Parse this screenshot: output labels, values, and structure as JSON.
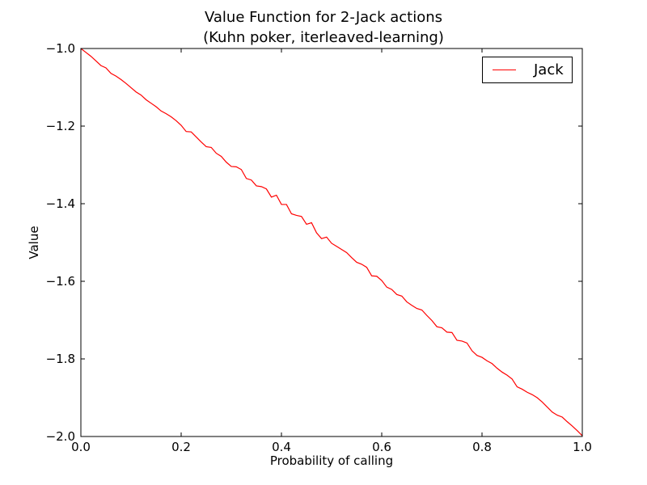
{
  "chart_data": {
    "type": "line",
    "title": "Value Function for 2-Jack actions",
    "subtitle": "(Kuhn poker, iterleaved-learning)",
    "xlabel": "Probability of calling",
    "ylabel": "Value",
    "xlim": [
      0.0,
      1.0
    ],
    "ylim": [
      -2.0,
      -1.0
    ],
    "xticks": [
      0.0,
      0.2,
      0.4,
      0.6,
      0.8,
      1.0
    ],
    "xtick_labels": [
      "0.0",
      "0.2",
      "0.4",
      "0.6",
      "0.8",
      "1.0"
    ],
    "yticks": [
      -1.0,
      -1.2,
      -1.4,
      -1.6,
      -1.8,
      -2.0
    ],
    "ytick_labels": [
      "−1.0",
      "−1.2",
      "−1.4",
      "−1.6",
      "−1.8",
      "−2.0"
    ],
    "grid": false,
    "legend_position": "top-right",
    "colors": {
      "series": "#ff0000"
    },
    "series": [
      {
        "name": "Jack",
        "x": [
          0.0,
          0.01,
          0.02,
          0.03,
          0.04,
          0.05,
          0.06,
          0.07,
          0.08,
          0.09,
          0.1,
          0.11,
          0.12,
          0.13,
          0.14,
          0.15,
          0.16,
          0.17,
          0.18,
          0.19,
          0.2,
          0.21,
          0.22,
          0.23,
          0.24,
          0.25,
          0.26,
          0.27,
          0.28,
          0.29,
          0.3,
          0.31,
          0.32,
          0.33,
          0.34,
          0.35,
          0.36,
          0.37,
          0.38,
          0.39,
          0.4,
          0.41,
          0.42,
          0.43,
          0.44,
          0.45,
          0.46,
          0.47,
          0.48,
          0.49,
          0.5,
          0.51,
          0.52,
          0.53,
          0.54,
          0.55,
          0.56,
          0.57,
          0.58,
          0.59,
          0.6,
          0.61,
          0.62,
          0.63,
          0.64,
          0.65,
          0.66,
          0.67,
          0.68,
          0.69,
          0.7,
          0.71,
          0.72,
          0.73,
          0.74,
          0.75,
          0.76,
          0.77,
          0.78,
          0.79,
          0.8,
          0.81,
          0.82,
          0.83,
          0.84,
          0.85,
          0.86,
          0.87,
          0.88,
          0.89,
          0.9,
          0.91,
          0.92,
          0.93,
          0.94,
          0.95,
          0.96,
          0.97,
          0.98,
          0.99,
          1.0
        ],
        "y": [
          -1.0,
          -1.01,
          -1.02,
          -1.032,
          -1.044,
          -1.05,
          -1.064,
          -1.071,
          -1.08,
          -1.09,
          -1.101,
          -1.112,
          -1.12,
          -1.132,
          -1.141,
          -1.15,
          -1.161,
          -1.168,
          -1.176,
          -1.186,
          -1.198,
          -1.214,
          -1.215,
          -1.228,
          -1.241,
          -1.253,
          -1.255,
          -1.27,
          -1.278,
          -1.293,
          -1.304,
          -1.305,
          -1.312,
          -1.335,
          -1.339,
          -1.354,
          -1.356,
          -1.362,
          -1.383,
          -1.378,
          -1.402,
          -1.402,
          -1.426,
          -1.43,
          -1.433,
          -1.453,
          -1.449,
          -1.475,
          -1.49,
          -1.486,
          -1.502,
          -1.51,
          -1.518,
          -1.526,
          -1.539,
          -1.551,
          -1.556,
          -1.564,
          -1.586,
          -1.587,
          -1.598,
          -1.615,
          -1.621,
          -1.634,
          -1.638,
          -1.653,
          -1.662,
          -1.67,
          -1.674,
          -1.688,
          -1.701,
          -1.717,
          -1.72,
          -1.731,
          -1.732,
          -1.752,
          -1.754,
          -1.759,
          -1.779,
          -1.791,
          -1.796,
          -1.805,
          -1.812,
          -1.824,
          -1.834,
          -1.842,
          -1.852,
          -1.872,
          -1.878,
          -1.886,
          -1.892,
          -1.9,
          -1.911,
          -1.924,
          -1.937,
          -1.945,
          -1.95,
          -1.962,
          -1.973,
          -1.985,
          -1.998
        ]
      }
    ]
  }
}
